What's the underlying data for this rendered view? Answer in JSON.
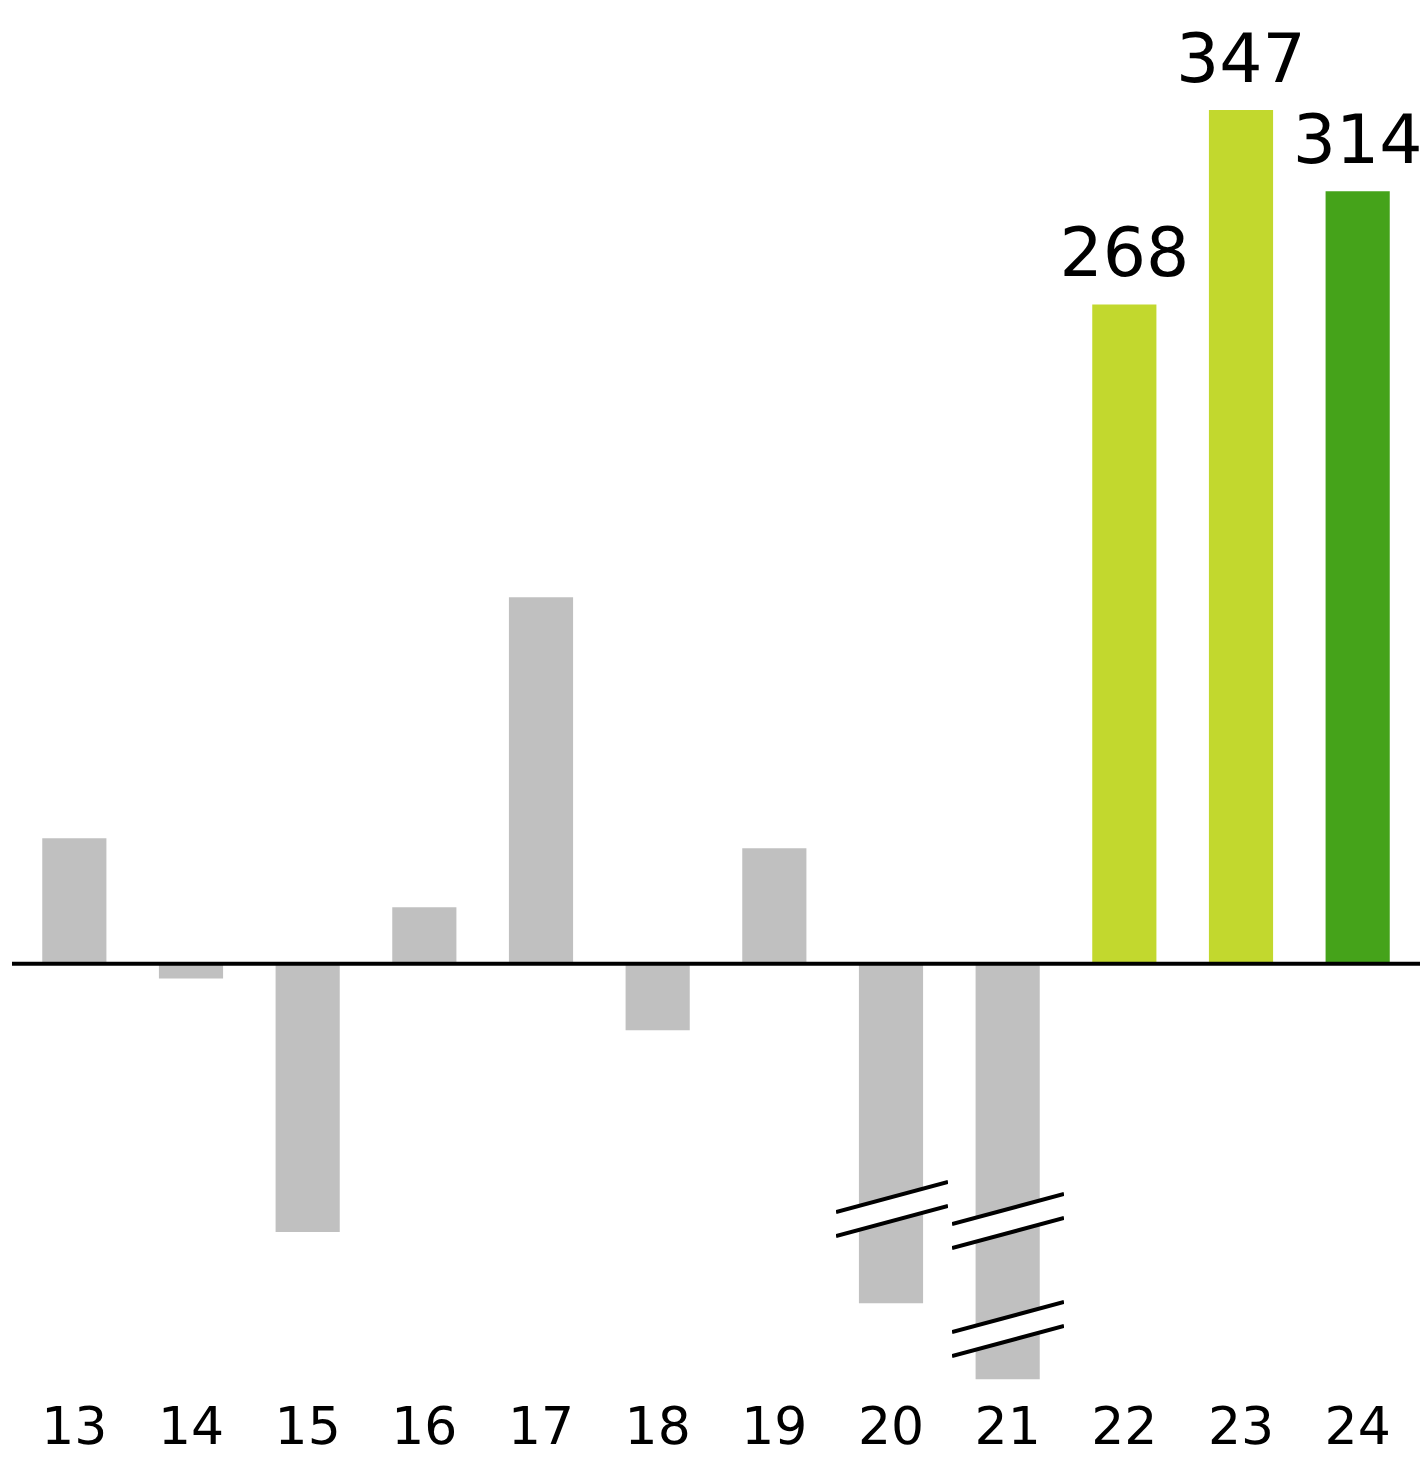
{
  "chart_data": {
    "type": "bar",
    "categories": [
      "13",
      "14",
      "15",
      "16",
      "17",
      "18",
      "19",
      "20",
      "21",
      "22",
      "23",
      "24"
    ],
    "values": [
      51,
      -6,
      -109,
      23,
      149,
      -27,
      47,
      -138,
      -169,
      268,
      347,
      314
    ],
    "colors": [
      "#c0c0c0",
      "#c0c0c0",
      "#c0c0c0",
      "#c0c0c0",
      "#c0c0c0",
      "#c0c0c0",
      "#c0c0c0",
      "#c0c0c0",
      "#c0c0c0",
      "#c2d82e",
      "#c2d82e",
      "#45a31a"
    ],
    "value_labels": [
      null,
      null,
      null,
      null,
      null,
      null,
      null,
      null,
      null,
      "268",
      "347",
      "314"
    ],
    "grid": false,
    "legend": false
  }
}
